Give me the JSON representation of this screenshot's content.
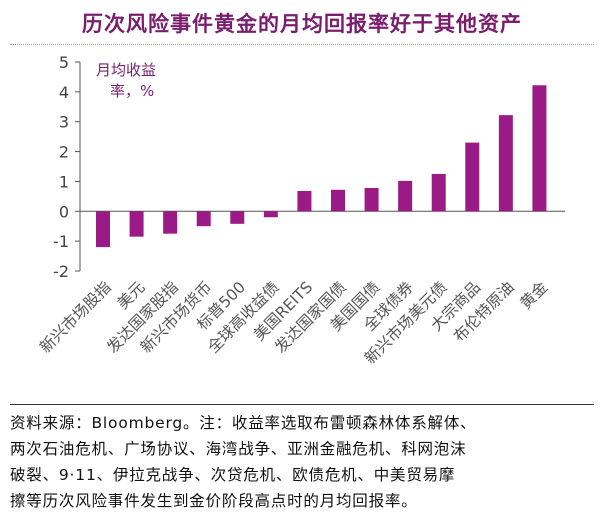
{
  "chart_data": {
    "type": "bar",
    "title": "历次风险事件黄金的月均回报率好于其他资产",
    "ylabel_line1": "月均收益",
    "ylabel_line2": "率，%",
    "ylim": [
      -2,
      5
    ],
    "yticks": [
      "5",
      "4",
      "3",
      "2",
      "1",
      "0",
      "-1",
      "-2"
    ],
    "ytick_values": [
      5,
      4,
      3,
      2,
      1,
      0,
      -1,
      -2
    ],
    "categories": [
      "新兴市场股指",
      "美元",
      "发达国家股指",
      "新兴市场货币",
      "标普500",
      "全球高收益债",
      "美国REITS",
      "发达国家国债",
      "美国国债",
      "全球债券",
      "新兴市场美元债",
      "大宗商品",
      "布伦特原油",
      "黄金"
    ],
    "values": [
      -1.2,
      -0.85,
      -0.75,
      -0.5,
      -0.42,
      -0.2,
      0.68,
      0.72,
      0.78,
      1.02,
      1.25,
      2.3,
      3.22,
      4.22
    ],
    "bar_color": "#9b1b86"
  },
  "footnote": {
    "lines": [
      "资料来源：Bloomberg。注：收益率选取布雷顿森林体系解体、",
      "两次石油危机、广场协议、海湾战争、亚洲金融危机、科网泡沫",
      "破裂、9·11、伊拉克战争、次贷危机、欧债危机、中美贸易摩",
      "擦等历次风险事件发生到金价阶段高点时的月均回报率。"
    ]
  },
  "colors": {
    "title": "#7a1d6d",
    "axis_label": "#7a1d6d",
    "text": "#555555"
  }
}
